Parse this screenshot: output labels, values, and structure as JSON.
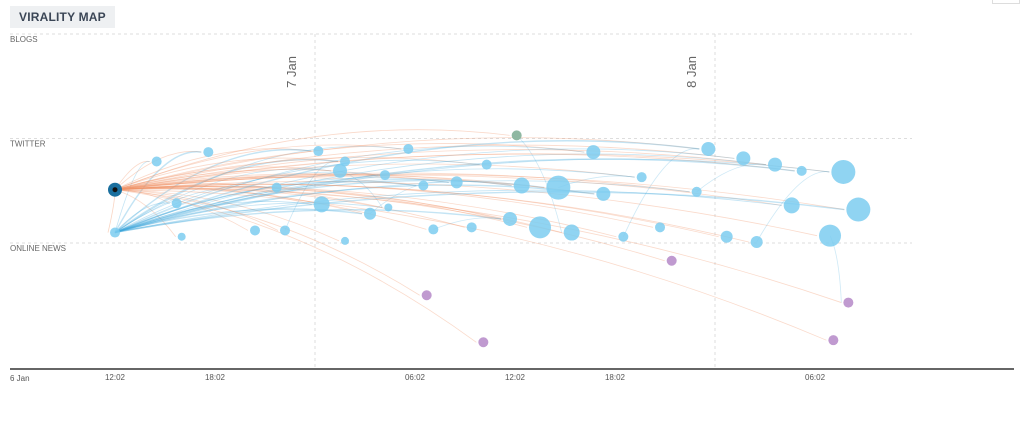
{
  "header": {
    "title": "VIRALITY MAP"
  },
  "chart_data": {
    "type": "scatter",
    "title": "VIRALITY MAP",
    "lanes": [
      {
        "name": "BLOGS",
        "y": 2
      },
      {
        "name": "TWITTER",
        "y": 1
      },
      {
        "name": "ONLINE NEWS",
        "y": 0
      }
    ],
    "x_unit": "hours since 6 Jan 00:02",
    "x_start_label": "6 Jan",
    "x_ticks": [
      {
        "h": 12,
        "label": "12:02"
      },
      {
        "h": 18,
        "label": "18:02"
      },
      {
        "h": 30,
        "label": "06:02"
      },
      {
        "h": 36,
        "label": "12:02"
      },
      {
        "h": 42,
        "label": "18:02"
      },
      {
        "h": 54,
        "label": "06:02"
      }
    ],
    "day_markers": [
      {
        "h": 24,
        "label": "7 Jan"
      },
      {
        "h": 48,
        "label": "8 Jan"
      }
    ],
    "colors": {
      "source": "#1a6f9e",
      "node": "#7ccdf0",
      "purple": "#c09ad0",
      "green": "#8fb8a2",
      "share_edge": "#f0956a",
      "news_edge": "#3aa7dc"
    },
    "nodes": [
      [
        12,
        0.51,
        7,
        "source"
      ],
      [
        12,
        0.1,
        5,
        "node"
      ],
      [
        14.5,
        0.78,
        5,
        "node"
      ],
      [
        17.6,
        0.87,
        5,
        "node"
      ],
      [
        15.7,
        0.38,
        5,
        "node"
      ],
      [
        16,
        0.06,
        4,
        "node"
      ],
      [
        20.4,
        0.12,
        5,
        "node"
      ],
      [
        22.2,
        0.12,
        5,
        "node"
      ],
      [
        21.7,
        0.53,
        5,
        "node"
      ],
      [
        24.2,
        0.88,
        5,
        "node"
      ],
      [
        24.4,
        0.37,
        8,
        "node"
      ],
      [
        25.5,
        0.69,
        7,
        "node"
      ],
      [
        25.8,
        0.78,
        5,
        "node"
      ],
      [
        25.8,
        0.02,
        4,
        "node"
      ],
      [
        28.2,
        0.65,
        5,
        "node"
      ],
      [
        27.3,
        0.28,
        6,
        "node"
      ],
      [
        28.4,
        0.34,
        4,
        "node"
      ],
      [
        29.6,
        0.9,
        5,
        "node"
      ],
      [
        30.5,
        0.55,
        5,
        "node"
      ],
      [
        31.1,
        0.13,
        5,
        "node"
      ],
      [
        32.5,
        0.58,
        6,
        "node"
      ],
      [
        33.4,
        0.15,
        5,
        "node"
      ],
      [
        34.3,
        0.75,
        5,
        "node"
      ],
      [
        36.1,
        1.03,
        5,
        "green"
      ],
      [
        35.7,
        0.23,
        7,
        "node"
      ],
      [
        36.4,
        0.55,
        8,
        "node"
      ],
      [
        37.5,
        0.15,
        11,
        "node"
      ],
      [
        38.6,
        0.53,
        12,
        "node"
      ],
      [
        39.4,
        0.1,
        8,
        "node"
      ],
      [
        40.7,
        0.87,
        7,
        "node"
      ],
      [
        41.3,
        0.47,
        7,
        "node"
      ],
      [
        42.5,
        0.06,
        5,
        "node"
      ],
      [
        43.6,
        0.63,
        5,
        "node"
      ],
      [
        44.7,
        0.15,
        5,
        "node"
      ],
      [
        45.4,
        -0.17,
        5,
        "purple"
      ],
      [
        46.9,
        0.49,
        5,
        "node"
      ],
      [
        47.6,
        0.9,
        7,
        "node"
      ],
      [
        48.7,
        0.06,
        6,
        "node"
      ],
      [
        49.7,
        0.81,
        7,
        "node"
      ],
      [
        50.5,
        0.01,
        6,
        "node"
      ],
      [
        51.6,
        0.75,
        7,
        "node"
      ],
      [
        52.6,
        0.36,
        8,
        "node"
      ],
      [
        53.2,
        0.69,
        5,
        "node"
      ],
      [
        54.9,
        0.07,
        11,
        "node"
      ],
      [
        55.7,
        0.68,
        12,
        "node"
      ],
      [
        56.6,
        0.32,
        12,
        "node"
      ],
      [
        30.7,
        -0.5,
        5,
        "purple"
      ],
      [
        34.1,
        -0.95,
        5,
        "purple"
      ],
      [
        56,
        -0.57,
        5,
        "purple"
      ],
      [
        55.1,
        -0.93,
        5,
        "purple"
      ]
    ],
    "grid": true
  }
}
